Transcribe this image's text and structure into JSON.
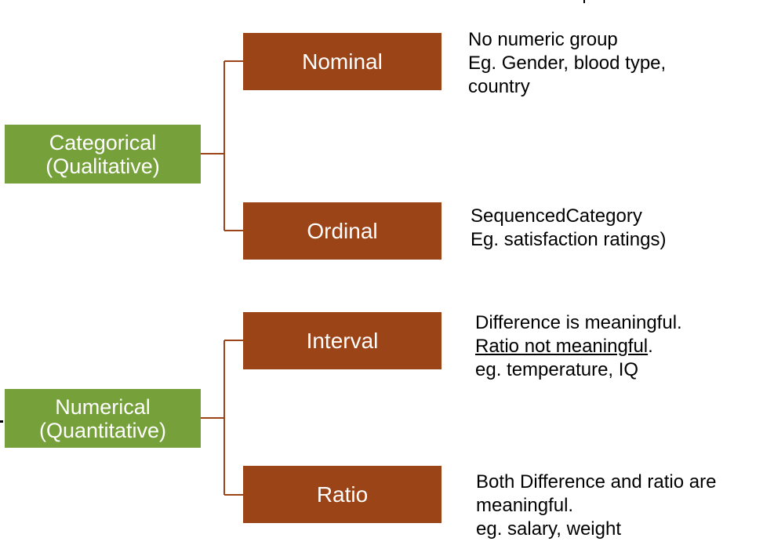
{
  "colors": {
    "green": "#76a03a",
    "brown": "#9a4418",
    "connector": "#9a4418",
    "text": "#000000"
  },
  "categorical": {
    "label_line1": "Categorical",
    "label_line2": "(Qualitative)",
    "children": [
      {
        "label": "Nominal",
        "desc": [
          "No numeric group",
          "Eg. Gender, blood type,",
          "country"
        ]
      },
      {
        "label": "Ordinal",
        "desc": [
          "SequencedCategory",
          "Eg. satisfaction ratings)"
        ]
      }
    ]
  },
  "numerical": {
    "label_line1": "Numerical",
    "label_line2": "(Quantitative)",
    "children": [
      {
        "label": "Interval",
        "desc_line1": "Difference is meaningful.",
        "desc_line2_underlined": "Ratio not meaningful",
        "desc_line2_suffix": ".",
        "desc_line3": "eg. temperature, IQ"
      },
      {
        "label": "Ratio",
        "desc": [
          "Both Difference and ratio are",
          "meaningful.",
          "eg. salary, weight"
        ]
      }
    ]
  }
}
